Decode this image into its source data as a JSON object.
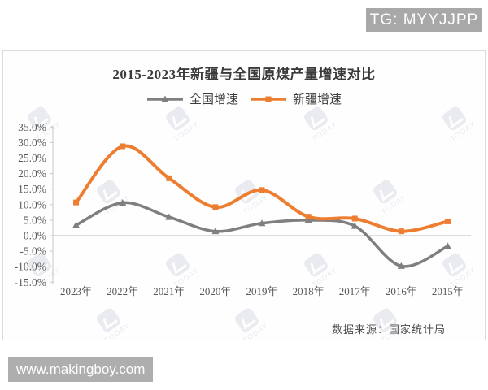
{
  "page": {
    "tg_badge": "TG: MYYJJPP",
    "site_badge": "www.makingboy.com",
    "badge_bg": "#a8a8a8"
  },
  "watermark": {
    "text": "TODAY"
  },
  "chart_data": {
    "type": "line",
    "title": "2015-2023年新疆与全国原煤产量增速对比",
    "categories": [
      "2023年",
      "2022年",
      "2021年",
      "2020年",
      "2019年",
      "2018年",
      "2017年",
      "2016年",
      "2015年"
    ],
    "series": [
      {
        "name": "全国增速",
        "color": "#7f7f7f",
        "marker": "triangle",
        "values": [
          3.4,
          10.6,
          6.0,
          1.4,
          4.0,
          5.0,
          3.1,
          -9.8,
          -3.4
        ]
      },
      {
        "name": "新疆增速",
        "color": "#ed7d31",
        "marker": "square",
        "values": [
          10.7,
          28.8,
          18.5,
          9.2,
          14.7,
          6.1,
          5.5,
          1.4,
          4.6
        ]
      }
    ],
    "ylim": [
      -15,
      35
    ],
    "ytick_step": 5,
    "ytick_labels": [
      "35.0%",
      "30.0%",
      "25.0%",
      "20.0%",
      "15.0%",
      "10.0%",
      "5.0%",
      "0.0%",
      "-5.0%",
      "-10.0%",
      "-15.0%"
    ],
    "grid": "zero-line-only",
    "legend_position": "top",
    "source_note": "数据来源：国家统计局"
  }
}
